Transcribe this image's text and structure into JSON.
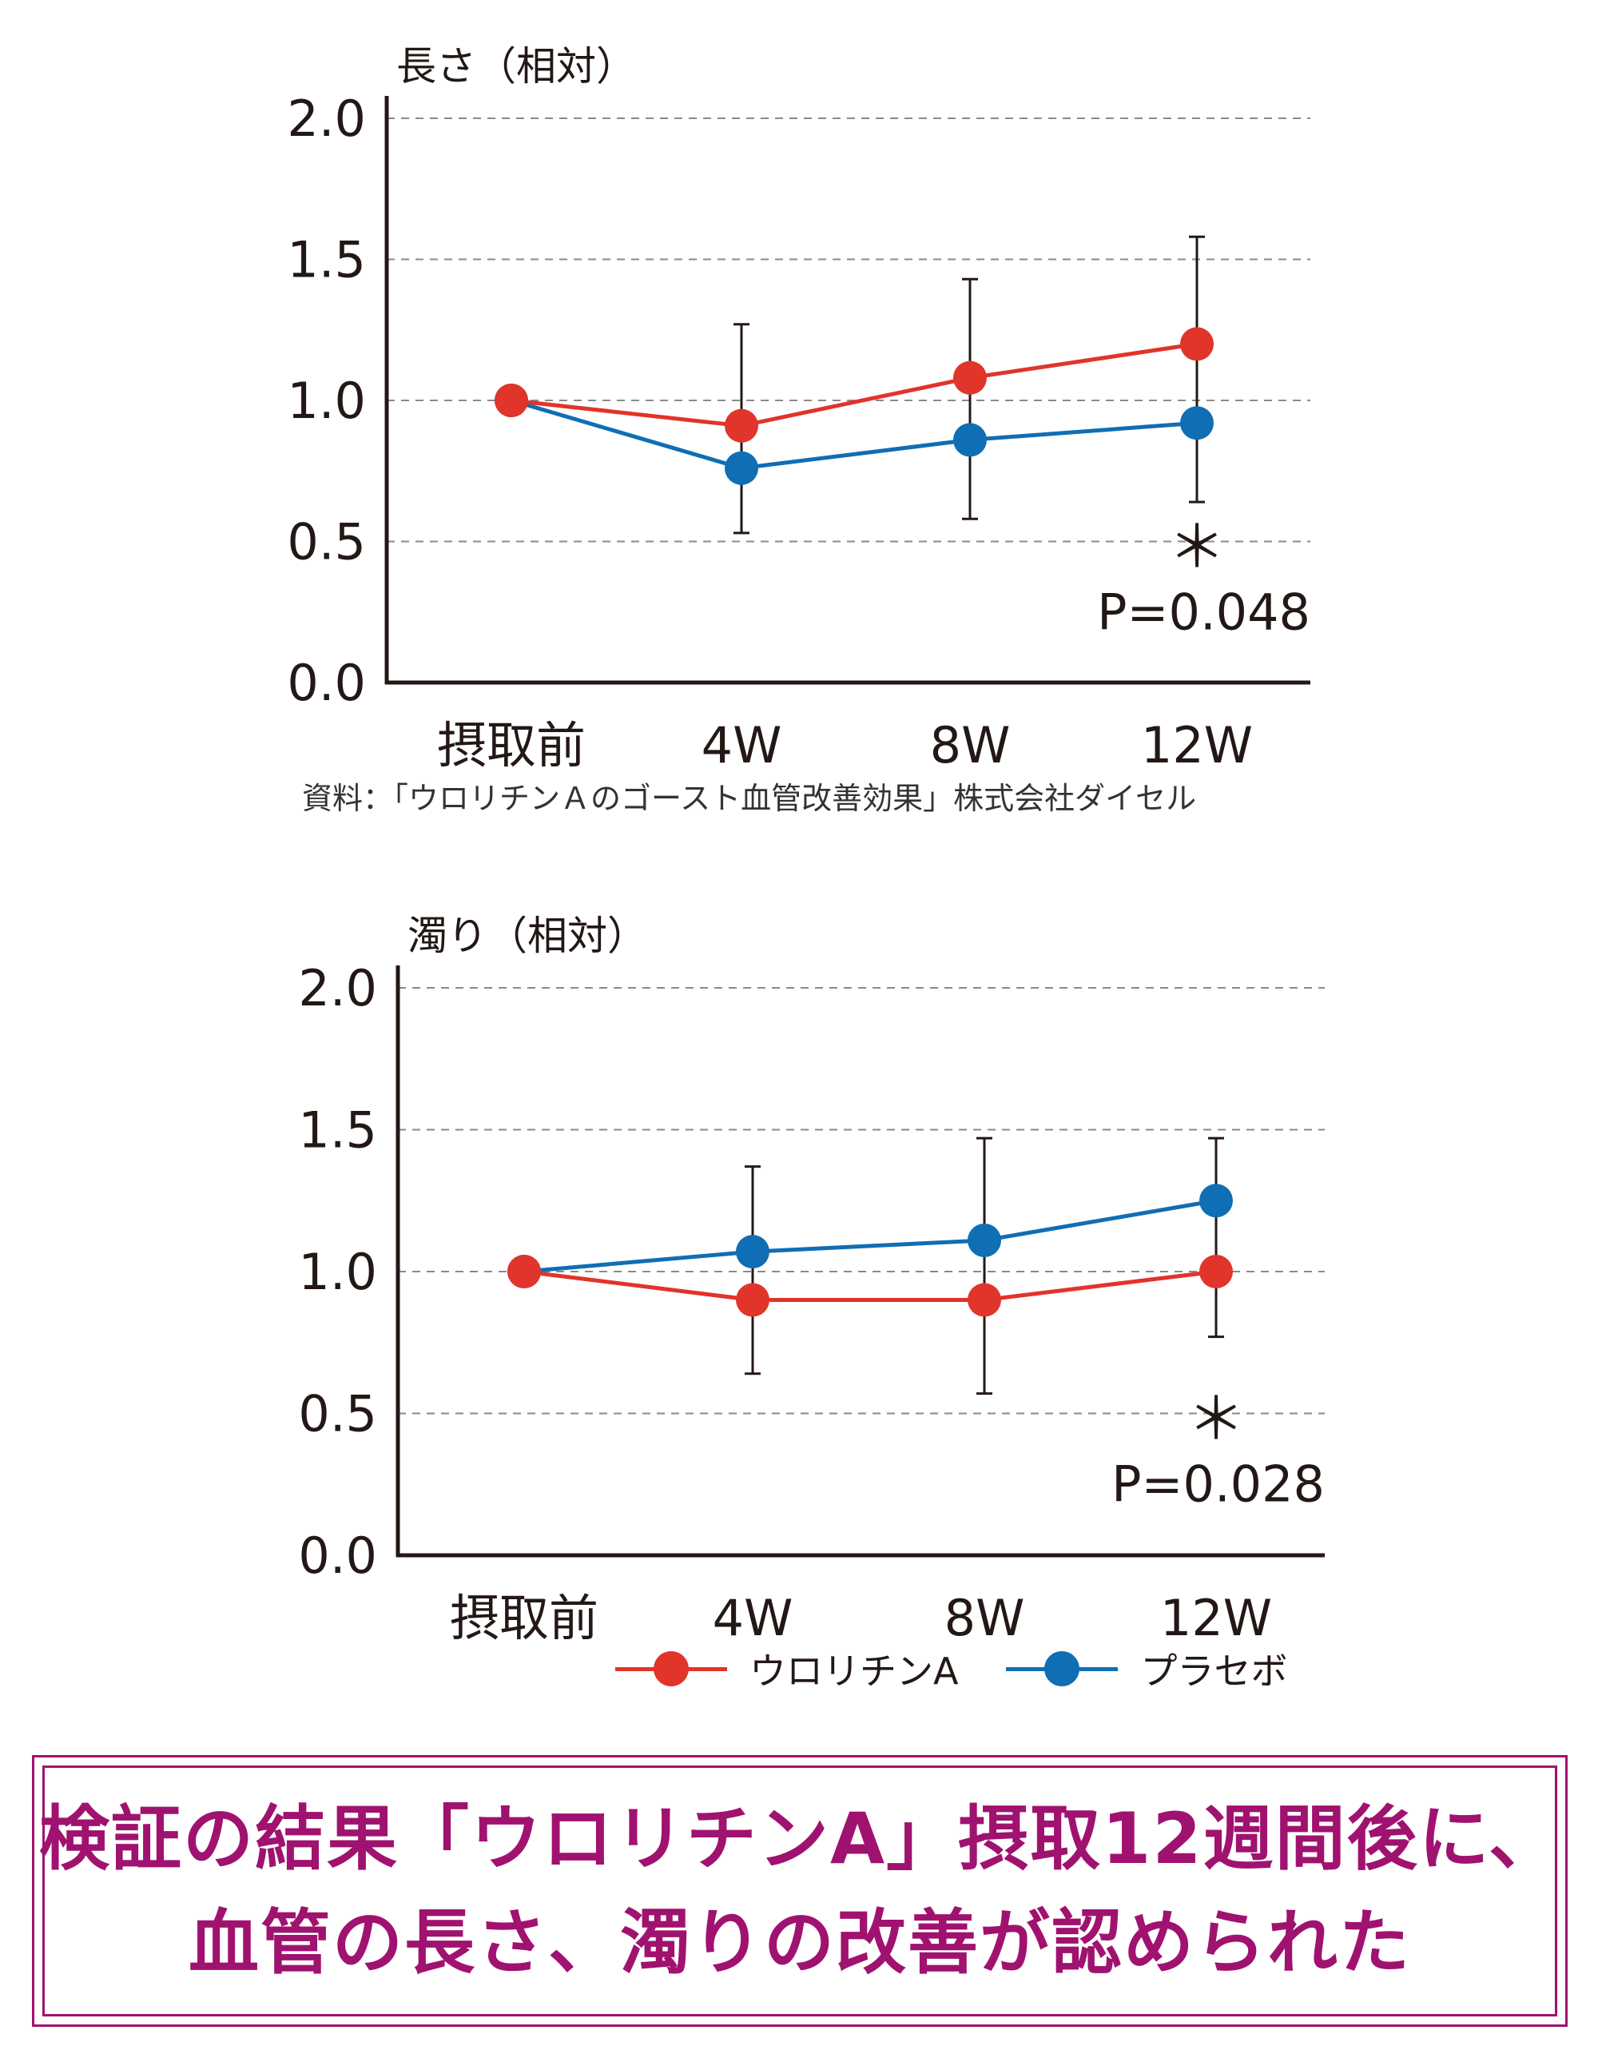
{
  "colors": {
    "urolithin": "#e1342a",
    "placebo": "#0f6eb4",
    "axis": "#231815",
    "grid": "#8a8a8a",
    "accent": "#a0126f"
  },
  "chart_data": [
    {
      "type": "line",
      "ylabel": "長さ（相対）",
      "categories": [
        "摂取前",
        "4W",
        "8W",
        "12W"
      ],
      "ylim": [
        0,
        2.0
      ],
      "yticks": [
        "0.0",
        "0.5",
        "1.0",
        "1.5",
        "2.0"
      ],
      "grid": "dashed horizontal at 0.5, 1.0, 1.5, 2.0",
      "series": [
        {
          "name": "ウロリチンA",
          "color": "#e1342a",
          "values": [
            1.0,
            0.91,
            1.08,
            1.2
          ]
        },
        {
          "name": "プラセボ",
          "color": "#0f6eb4",
          "values": [
            1.0,
            0.76,
            0.86,
            0.92
          ]
        }
      ],
      "error_bars": [
        {
          "category": "4W",
          "upper": 1.27,
          "lower": 0.53
        },
        {
          "category": "8W",
          "upper": 1.43,
          "lower": 0.58
        },
        {
          "category": "12W",
          "upper": 1.58,
          "lower": 0.64
        }
      ],
      "annotation": {
        "category": "12W",
        "mark": "＊",
        "text": "P=0.048"
      }
    },
    {
      "type": "line",
      "ylabel": "濁り（相対）",
      "categories": [
        "摂取前",
        "4W",
        "8W",
        "12W"
      ],
      "ylim": [
        0,
        2.0
      ],
      "yticks": [
        "0.0",
        "0.5",
        "1.0",
        "1.5",
        "2.0"
      ],
      "grid": "dashed horizontal at 0.5, 1.0, 1.5, 2.0",
      "series": [
        {
          "name": "ウロリチンA",
          "color": "#e1342a",
          "values": [
            1.0,
            0.9,
            0.9,
            1.0
          ]
        },
        {
          "name": "プラセボ",
          "color": "#0f6eb4",
          "values": [
            1.0,
            1.07,
            1.11,
            1.25
          ]
        }
      ],
      "error_bars": [
        {
          "category": "4W",
          "upper": 1.37,
          "lower": 0.64
        },
        {
          "category": "8W",
          "upper": 1.47,
          "lower": 0.57
        },
        {
          "category": "12W",
          "upper": 1.47,
          "lower": 0.77
        }
      ],
      "annotation": {
        "category": "12W",
        "mark": "＊",
        "text": "P=0.028"
      }
    }
  ],
  "source": "資料：「ウロリチンＡのゴースト血管改善効果」株式会社ダイセル",
  "legend": {
    "urolithin": "ウロリチンA",
    "placebo": "プラセボ"
  },
  "conclusion": {
    "line1": "検証の結果「ウロリチンA」摂取12週間後に、",
    "line2": "血管の長さ、濁りの改善が認められた"
  }
}
